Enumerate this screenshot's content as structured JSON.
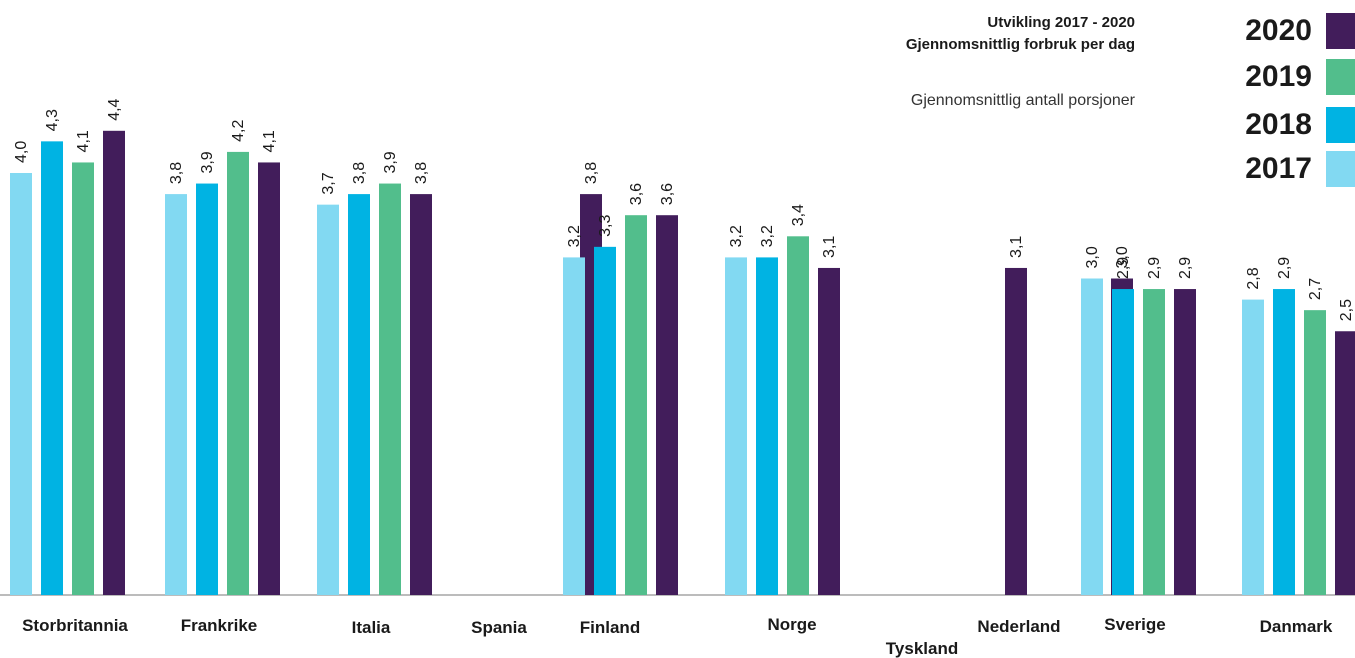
{
  "chart_data": {
    "type": "bar",
    "title": "Utvikling 2017 - 2020",
    "subtitle": "Gjennomsnittlig forbruk per dag",
    "ylabel": "Gjennomsnittlig antall porsjoner",
    "ylim": [
      0,
      4.4
    ],
    "grid": false,
    "legend_position": "top-right",
    "categories": [
      "Storbritannia",
      "Frankrike",
      "Italia",
      "Spania",
      "Finland",
      "Norge",
      "Tyskland",
      "Nederland",
      "Sverige",
      "Danmark"
    ],
    "series": [
      {
        "name": "2017",
        "color": "#82d9f2",
        "values": [
          4.0,
          3.8,
          3.7,
          null,
          3.2,
          3.2,
          null,
          null,
          3.0,
          2.8
        ],
        "labels": [
          "4,0",
          "3,8",
          "3,7",
          null,
          "3,2",
          "3,2",
          null,
          null,
          "3,0",
          "2,8"
        ]
      },
      {
        "name": "2018",
        "color": "#00b3e3",
        "values": [
          4.3,
          3.9,
          3.8,
          null,
          3.3,
          3.2,
          null,
          null,
          2.9,
          2.9
        ],
        "labels": [
          "4,3",
          "3,9",
          "3,8",
          null,
          "3,3",
          "3,2",
          null,
          null,
          "2,9",
          "2,9"
        ]
      },
      {
        "name": "2019",
        "color": "#52be8c",
        "values": [
          4.1,
          4.2,
          3.9,
          null,
          3.6,
          3.4,
          null,
          null,
          2.9,
          2.7
        ],
        "labels": [
          "4,1",
          "4,2",
          "3,9",
          null,
          "3,6",
          "3,4",
          null,
          null,
          "2,9",
          "2,7"
        ]
      },
      {
        "name": "2020",
        "color": "#421d5b",
        "values": [
          4.4,
          4.1,
          3.8,
          3.8,
          3.6,
          3.1,
          3.1,
          3.0,
          2.9,
          2.5
        ],
        "labels": [
          "4,4",
          "4,1",
          "3,8",
          "3,8",
          "3,6",
          "3,1",
          "3,1",
          "3,0",
          "2,9",
          "2,5"
        ]
      }
    ]
  }
}
